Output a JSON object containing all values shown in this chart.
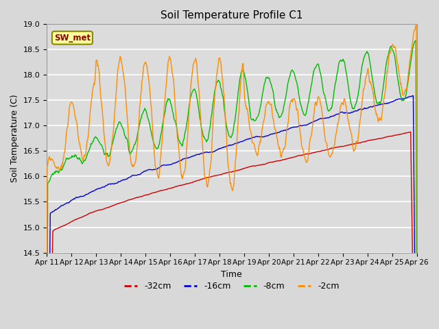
{
  "title": "Soil Temperature Profile C1",
  "xlabel": "Time",
  "ylabel": "Soil Temperature (C)",
  "ylim": [
    14.5,
    19.0
  ],
  "xlim": [
    0,
    360
  ],
  "fig_bg_color": "#d8d8d8",
  "plot_bg_color": "#dcdcdc",
  "grid_color": "white",
  "label_box": "SW_met",
  "series_colors": [
    "#cc0000",
    "#0000cc",
    "#00bb00",
    "#ff8c00"
  ],
  "series_labels": [
    "-32cm",
    "-16cm",
    "-8cm",
    "-2cm"
  ],
  "tick_labels": [
    "Apr 11",
    "Apr 12",
    "Apr 13",
    "Apr 14",
    "Apr 15",
    "Apr 16",
    "Apr 17",
    "Apr 18",
    "Apr 19",
    "Apr 20",
    "Apr 21",
    "Apr 22",
    "Apr 23",
    "Apr 24",
    "Apr 25",
    "Apr 26"
  ],
  "tick_positions": [
    0,
    24,
    48,
    72,
    96,
    120,
    144,
    168,
    192,
    216,
    240,
    264,
    288,
    312,
    336,
    360
  ],
  "figsize": [
    6.4,
    4.8
  ],
  "dpi": 100
}
